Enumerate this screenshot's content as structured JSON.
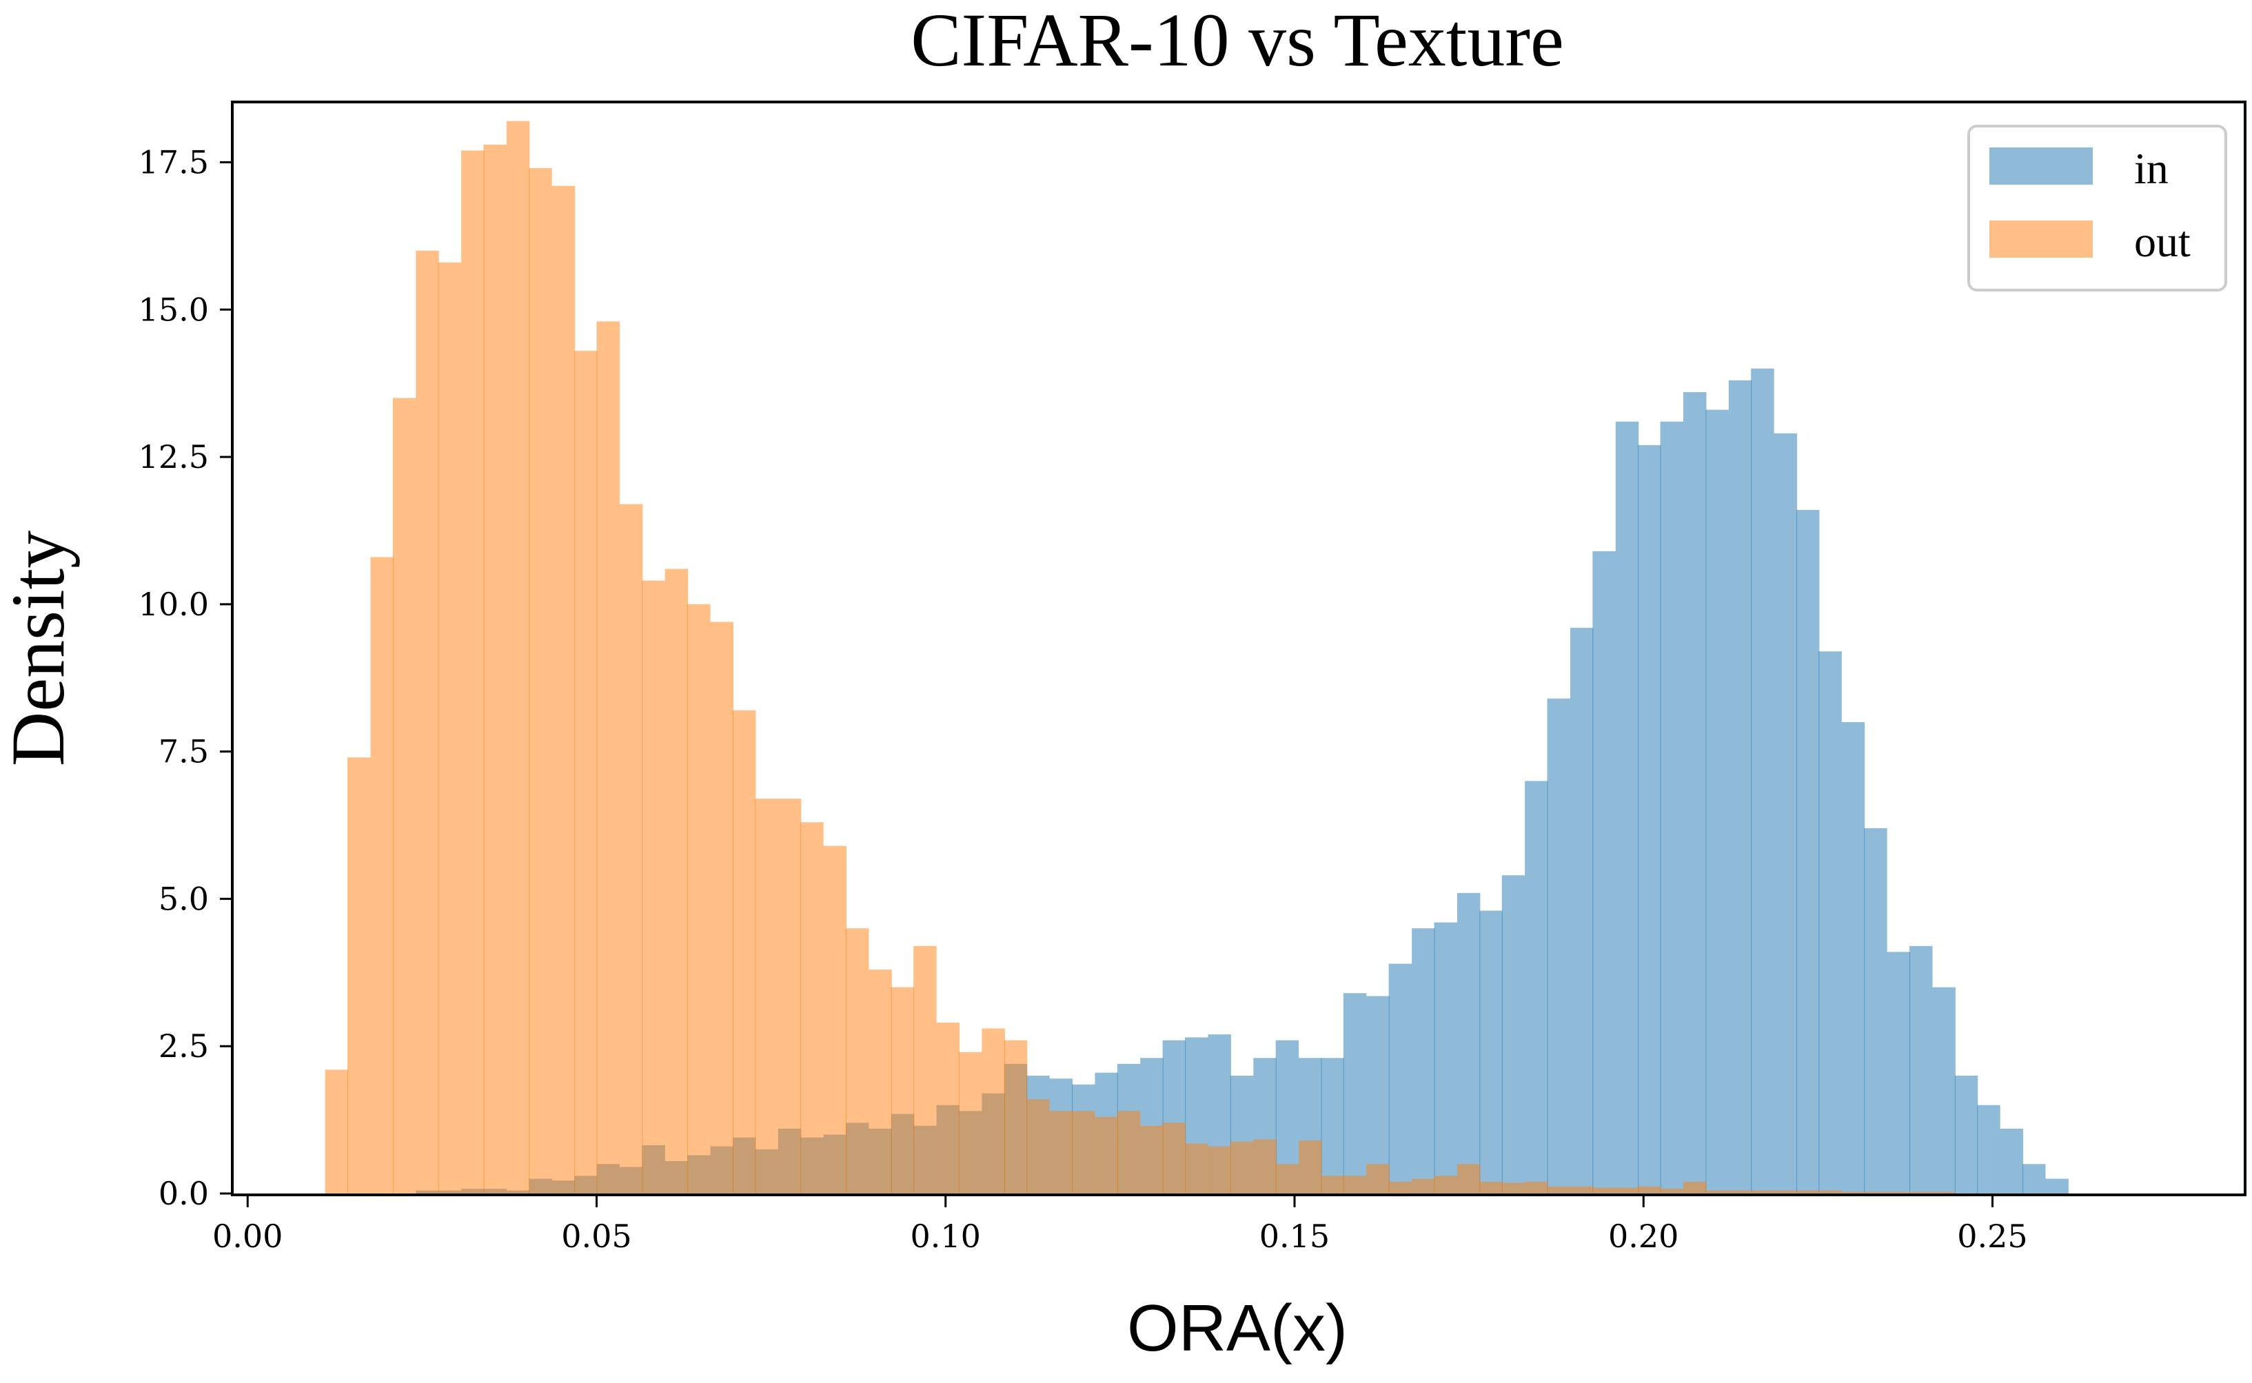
{
  "chart_data": {
    "type": "histogram",
    "title": "CIFAR-10 vs Texture",
    "xlabel": "ORA(x)",
    "ylabel": "Density",
    "xlim": [
      -0.002,
      0.286
    ],
    "ylim": [
      0,
      18.5
    ],
    "xticks": [
      0.0,
      0.05,
      0.1,
      0.15,
      0.2,
      0.25
    ],
    "xtick_labels": [
      "0.00",
      "0.05",
      "0.10",
      "0.15",
      "0.20",
      "0.25"
    ],
    "yticks": [
      0,
      2.5,
      5,
      7.5,
      10,
      12.5,
      15,
      17.5
    ],
    "ytick_labels": [
      "0.0",
      "2.5",
      "5.0",
      "7.5",
      "10.0",
      "12.5",
      "15.0",
      "17.5"
    ],
    "grid": false,
    "legend": {
      "placement": "top-right"
    },
    "series": [
      {
        "name": "in",
        "color": "#1f77b4",
        "alpha": 0.5,
        "bin_start": 0.012,
        "bin_width": 0.003245,
        "values": [
          0,
          0,
          0,
          0.05,
          0.05,
          0.05,
          0.05,
          0.05,
          0.05,
          0.05,
          0.05,
          0.05,
          0.05,
          0.05,
          0.05,
          0.05,
          0.05,
          0.05,
          0.05,
          0.05,
          0.05,
          0.05,
          0.05,
          0.05,
          0.05,
          0.05,
          0.05,
          0.05,
          0.05,
          0.05,
          0.05,
          0.05,
          0.05,
          0.05,
          0.05,
          0.05,
          0.05,
          0.05,
          0.05,
          0.05,
          0.05,
          0.05,
          0.05,
          0.05,
          0.05,
          0.05,
          0.05,
          0.05,
          0.05,
          0.05,
          0.05,
          0.05,
          0.05,
          0.05,
          0.05,
          0.05,
          0.05,
          0.05,
          0.05,
          0.05,
          0.05,
          0.05,
          0.05,
          0.05,
          0.05,
          0.05,
          0.05,
          0.05,
          0.05,
          0.05,
          0.05,
          0.05,
          0.05,
          0.05,
          0.05,
          0.05,
          0.05,
          0.05,
          0.05,
          0.05,
          0.05
        ],
        "values_override": {
          "bins": [
            [
              0.012,
              0.0
            ],
            [
              0.1098,
              2.2
            ],
            [
              0.113,
              2.0
            ],
            [
              0.1163,
              1.95
            ],
            [
              0.1195,
              1.85
            ],
            [
              0.1228,
              2.05
            ],
            [
              0.126,
              2.2
            ],
            [
              0.1293,
              2.3
            ],
            [
              0.1325,
              2.6
            ],
            [
              0.1357,
              2.65
            ],
            [
              0.139,
              2.7
            ],
            [
              0.1422,
              2.0
            ],
            [
              0.1455,
              2.3
            ],
            [
              0.1487,
              2.6
            ],
            [
              0.152,
              2.3
            ],
            [
              0.1552,
              2.3
            ],
            [
              0.1585,
              3.4
            ],
            [
              0.1617,
              3.35
            ],
            [
              0.1649,
              3.9
            ],
            [
              0.1682,
              4.5
            ],
            [
              0.1714,
              4.6
            ],
            [
              0.1747,
              5.1
            ],
            [
              0.1779,
              4.8
            ],
            [
              0.1812,
              5.4
            ],
            [
              0.1844,
              7.0
            ],
            [
              0.1876,
              8.4
            ],
            [
              0.1909,
              9.6
            ],
            [
              0.1941,
              10.9
            ],
            [
              0.1974,
              13.1
            ],
            [
              0.2006,
              12.7
            ],
            [
              0.2039,
              13.1
            ],
            [
              0.2071,
              13.6
            ],
            [
              0.2103,
              13.3
            ],
            [
              0.2136,
              13.8
            ],
            [
              0.2168,
              14.0
            ],
            [
              0.2201,
              12.9
            ],
            [
              0.2233,
              11.6
            ],
            [
              0.2266,
              9.2
            ],
            [
              0.2298,
              8.0
            ],
            [
              0.233,
              6.2
            ],
            [
              0.2363,
              4.1
            ],
            [
              0.2395,
              4.2
            ],
            [
              0.2428,
              3.5
            ],
            [
              0.246,
              2.0
            ],
            [
              0.2493,
              1.5
            ],
            [
              0.2525,
              1.1
            ],
            [
              0.2558,
              0.5
            ],
            [
              0.259,
              0.25
            ]
          ]
        }
      },
      {
        "name": "out",
        "color": "#ff7f0e",
        "alpha": 0.5
      }
    ],
    "bins": {
      "in": [
        [
          0.0241,
          0.05
        ],
        [
          0.0273,
          0.05
        ],
        [
          0.0306,
          0.08
        ],
        [
          0.0338,
          0.08
        ],
        [
          0.0371,
          0.05
        ],
        [
          0.0403,
          0.25
        ],
        [
          0.0436,
          0.22
        ],
        [
          0.0468,
          0.3
        ],
        [
          0.05,
          0.5
        ],
        [
          0.0533,
          0.45
        ],
        [
          0.0565,
          0.82
        ],
        [
          0.0598,
          0.55
        ],
        [
          0.063,
          0.65
        ],
        [
          0.0663,
          0.8
        ],
        [
          0.0695,
          0.95
        ],
        [
          0.0727,
          0.75
        ],
        [
          0.076,
          1.1
        ],
        [
          0.0792,
          0.95
        ],
        [
          0.0825,
          1.0
        ],
        [
          0.0857,
          1.2
        ],
        [
          0.089,
          1.1
        ],
        [
          0.0922,
          1.35
        ],
        [
          0.0954,
          1.15
        ],
        [
          0.0987,
          1.5
        ],
        [
          0.1019,
          1.4
        ],
        [
          0.1052,
          1.7
        ],
        [
          0.1084,
          2.2
        ],
        [
          0.1116,
          2.0
        ],
        [
          0.1149,
          1.95
        ],
        [
          0.1181,
          1.85
        ],
        [
          0.1214,
          2.05
        ],
        [
          0.1246,
          2.2
        ],
        [
          0.1279,
          2.3
        ],
        [
          0.1311,
          2.6
        ],
        [
          0.1343,
          2.65
        ],
        [
          0.1376,
          2.7
        ],
        [
          0.1408,
          2.0
        ],
        [
          0.1441,
          2.3
        ],
        [
          0.1473,
          2.6
        ],
        [
          0.1506,
          2.3
        ],
        [
          0.1538,
          2.3
        ],
        [
          0.157,
          3.4
        ],
        [
          0.1603,
          3.35
        ],
        [
          0.1635,
          3.9
        ],
        [
          0.1668,
          4.5
        ],
        [
          0.17,
          4.6
        ],
        [
          0.1733,
          5.1
        ],
        [
          0.1765,
          4.8
        ],
        [
          0.1797,
          5.4
        ],
        [
          0.183,
          7.0
        ],
        [
          0.1862,
          8.4
        ],
        [
          0.1895,
          9.6
        ],
        [
          0.1927,
          10.9
        ],
        [
          0.196,
          13.1
        ],
        [
          0.1992,
          12.7
        ],
        [
          0.2024,
          13.1
        ],
        [
          0.2057,
          13.6
        ],
        [
          0.2089,
          13.3
        ],
        [
          0.2122,
          13.8
        ],
        [
          0.2154,
          14.0
        ],
        [
          0.2187,
          12.9
        ],
        [
          0.2219,
          11.6
        ],
        [
          0.2251,
          9.2
        ],
        [
          0.2284,
          8.0
        ],
        [
          0.2316,
          6.2
        ],
        [
          0.2349,
          4.1
        ],
        [
          0.2381,
          4.2
        ],
        [
          0.2414,
          3.5
        ],
        [
          0.2446,
          2.0
        ],
        [
          0.2478,
          1.5
        ],
        [
          0.2511,
          1.1
        ],
        [
          0.2543,
          0.5
        ],
        [
          0.2576,
          0.25
        ],
        [
          0.2608,
          0.0
        ]
      ],
      "out": [
        [
          0.0111,
          2.1
        ],
        [
          0.0143,
          7.4
        ],
        [
          0.0176,
          10.8
        ],
        [
          0.0208,
          13.5
        ],
        [
          0.0241,
          16.0
        ],
        [
          0.0273,
          15.8
        ],
        [
          0.0306,
          17.7
        ],
        [
          0.0338,
          17.8
        ],
        [
          0.0371,
          18.2
        ],
        [
          0.0403,
          17.4
        ],
        [
          0.0436,
          17.1
        ],
        [
          0.0468,
          14.3
        ],
        [
          0.05,
          14.8
        ],
        [
          0.0533,
          11.7
        ],
        [
          0.0565,
          10.4
        ],
        [
          0.0598,
          10.6
        ],
        [
          0.063,
          10.0
        ],
        [
          0.0663,
          9.7
        ],
        [
          0.0695,
          8.2
        ],
        [
          0.0727,
          6.7
        ],
        [
          0.076,
          6.7
        ],
        [
          0.0792,
          6.3
        ],
        [
          0.0825,
          5.9
        ],
        [
          0.0857,
          4.5
        ],
        [
          0.089,
          3.8
        ],
        [
          0.0922,
          3.5
        ],
        [
          0.0954,
          4.2
        ],
        [
          0.0987,
          2.9
        ],
        [
          0.1019,
          2.4
        ],
        [
          0.1052,
          2.8
        ],
        [
          0.1084,
          2.6
        ],
        [
          0.1116,
          1.6
        ],
        [
          0.1149,
          1.4
        ],
        [
          0.1181,
          1.4
        ],
        [
          0.1214,
          1.3
        ],
        [
          0.1246,
          1.4
        ],
        [
          0.1279,
          1.15
        ],
        [
          0.1311,
          1.2
        ],
        [
          0.1343,
          0.85
        ],
        [
          0.1376,
          0.8
        ],
        [
          0.1408,
          0.88
        ],
        [
          0.1441,
          0.92
        ],
        [
          0.1473,
          0.5
        ],
        [
          0.1506,
          0.9
        ],
        [
          0.1538,
          0.3
        ],
        [
          0.157,
          0.3
        ],
        [
          0.1603,
          0.5
        ],
        [
          0.1635,
          0.2
        ],
        [
          0.1668,
          0.25
        ],
        [
          0.17,
          0.3
        ],
        [
          0.1733,
          0.5
        ],
        [
          0.1765,
          0.2
        ],
        [
          0.1797,
          0.18
        ],
        [
          0.183,
          0.2
        ],
        [
          0.1862,
          0.12
        ],
        [
          0.1895,
          0.12
        ],
        [
          0.1927,
          0.1
        ],
        [
          0.196,
          0.1
        ],
        [
          0.1992,
          0.12
        ],
        [
          0.2024,
          0.08
        ],
        [
          0.2057,
          0.2
        ],
        [
          0.2089,
          0.05
        ],
        [
          0.2122,
          0.05
        ],
        [
          0.2154,
          0.05
        ],
        [
          0.2187,
          0.05
        ],
        [
          0.2219,
          0.05
        ],
        [
          0.2251,
          0.05
        ],
        [
          0.2284,
          0.03
        ],
        [
          0.2316,
          0.03
        ],
        [
          0.2349,
          0.03
        ],
        [
          0.2381,
          0.03
        ],
        [
          0.2414,
          0.03
        ],
        [
          0.2446,
          0.0
        ]
      ]
    }
  }
}
